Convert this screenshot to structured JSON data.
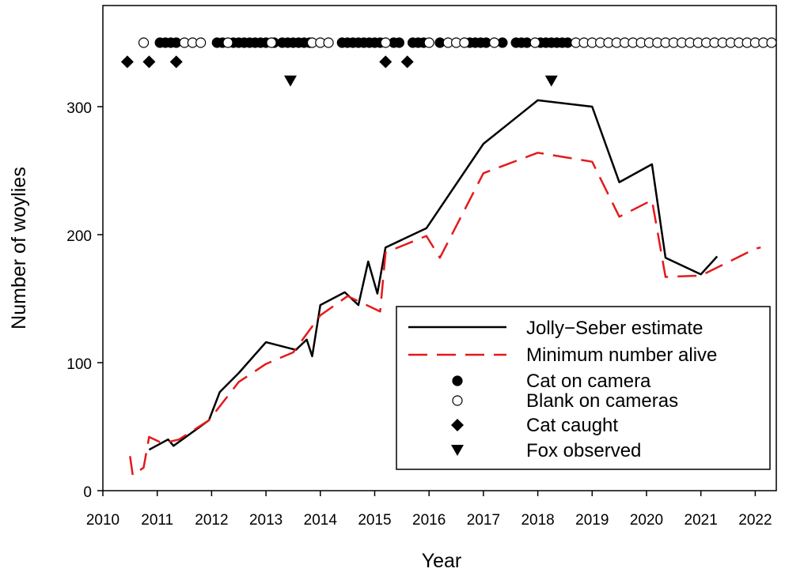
{
  "chart_data": {
    "type": "line",
    "title": "",
    "xlabel": "Year",
    "ylabel": "Number of woylies",
    "xlim": [
      2010,
      2022.5
    ],
    "ylim": [
      0,
      380
    ],
    "x_ticks": [
      2010,
      2011,
      2012,
      2013,
      2014,
      2015,
      2016,
      2017,
      2018,
      2019,
      2020,
      2021,
      2022
    ],
    "y_ticks": [
      0,
      100,
      200,
      300
    ],
    "grid": false,
    "legend_position": "bottom-right",
    "series": [
      {
        "name": "Jolly−Seber estimate",
        "style": "solid",
        "color": "#000000",
        "points": [
          [
            2010.85,
            32
          ],
          [
            2011.2,
            40
          ],
          [
            2011.3,
            35
          ],
          [
            2011.95,
            55
          ],
          [
            2012.15,
            77
          ],
          [
            2012.5,
            92
          ],
          [
            2013.0,
            116
          ],
          [
            2013.55,
            110
          ],
          [
            2013.75,
            118
          ],
          [
            2013.85,
            105
          ],
          [
            2014.0,
            145
          ],
          [
            2014.45,
            155
          ],
          [
            2014.7,
            145
          ],
          [
            2014.88,
            179
          ],
          [
            2015.05,
            154
          ],
          [
            2015.2,
            190
          ],
          [
            2015.95,
            205
          ],
          [
            2017.0,
            271
          ],
          [
            2018.0,
            305
          ],
          [
            2019.0,
            300
          ],
          [
            2019.5,
            241
          ],
          [
            2020.1,
            255
          ],
          [
            2020.35,
            182
          ],
          [
            2021.0,
            169
          ],
          [
            2021.3,
            183
          ]
        ]
      },
      {
        "name": "Minimum number alive",
        "style": "dashed",
        "color": "#e31a1c",
        "points": [
          [
            2010.5,
            27
          ],
          [
            2010.55,
            12
          ],
          [
            2010.75,
            18
          ],
          [
            2010.85,
            42
          ],
          [
            2011.1,
            37
          ],
          [
            2011.4,
            40
          ],
          [
            2011.95,
            55
          ],
          [
            2012.5,
            85
          ],
          [
            2013.0,
            99
          ],
          [
            2013.5,
            108
          ],
          [
            2014.0,
            137
          ],
          [
            2014.5,
            152
          ],
          [
            2015.1,
            140
          ],
          [
            2015.2,
            186
          ],
          [
            2015.95,
            199
          ],
          [
            2016.2,
            182
          ],
          [
            2017.0,
            248
          ],
          [
            2018.0,
            264
          ],
          [
            2019.0,
            257
          ],
          [
            2019.5,
            214
          ],
          [
            2020.1,
            227
          ],
          [
            2020.35,
            167
          ],
          [
            2021.0,
            168
          ],
          [
            2022.0,
            189
          ],
          [
            2022.1,
            190
          ]
        ]
      },
      {
        "name": "Cat on camera",
        "marker": "filled-circle",
        "y": 350,
        "x": [
          2011.05,
          2011.15,
          2011.25,
          2011.35,
          2012.1,
          2012.2,
          2012.4,
          2012.5,
          2012.6,
          2012.7,
          2012.8,
          2012.9,
          2013.0,
          2013.15,
          2013.3,
          2013.4,
          2013.5,
          2013.6,
          2013.7,
          2013.8,
          2014.4,
          2014.5,
          2014.6,
          2014.7,
          2014.8,
          2014.9,
          2015.0,
          2015.1,
          2015.35,
          2015.45,
          2015.7,
          2015.8,
          2015.9,
          2016.2,
          2016.75,
          2016.85,
          2016.95,
          2017.05,
          2017.35,
          2017.6,
          2017.7,
          2017.8,
          2018.05,
          2018.15,
          2018.25,
          2018.35,
          2018.45,
          2018.55
        ]
      },
      {
        "name": "Blank on cameras",
        "marker": "open-circle",
        "y": 350,
        "x": [
          2010.75,
          2011.5,
          2011.65,
          2011.8,
          2012.3,
          2013.1,
          2013.85,
          2014.0,
          2014.15,
          2015.2,
          2016.0,
          2016.35,
          2016.5,
          2016.65,
          2017.2,
          2017.95,
          2018.7,
          2018.85,
          2019.0,
          2019.15,
          2019.3,
          2019.45,
          2019.6,
          2019.75,
          2019.9,
          2020.05,
          2020.2,
          2020.35,
          2020.5,
          2020.65,
          2020.8,
          2020.95,
          2021.1,
          2021.25,
          2021.4,
          2021.55,
          2021.7,
          2021.85,
          2022.0,
          2022.15,
          2022.3
        ]
      },
      {
        "name": "Cat caught",
        "marker": "diamond",
        "y": 335,
        "x": [
          2010.45,
          2010.85,
          2011.35,
          2015.2,
          2015.6
        ]
      },
      {
        "name": "Fox observed",
        "marker": "down-triangle",
        "y": 320,
        "x": [
          2013.45,
          2018.25
        ]
      }
    ]
  }
}
